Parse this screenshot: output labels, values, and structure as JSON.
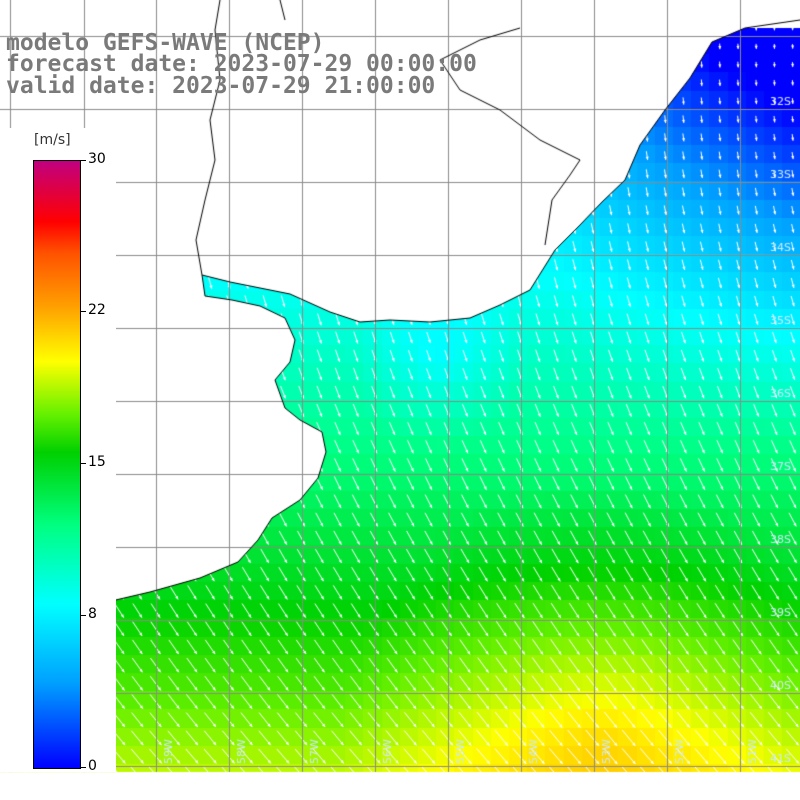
{
  "title": {
    "line1": "modelo GEFS-WAVE (NCEP)",
    "line2": "forecast date: 2023-07-29 00:00:00",
    "line3": "valid date: 2023-07-29 21:00:00"
  },
  "colorbar": {
    "unit": "[m/s]",
    "min": 0,
    "max": 30,
    "ticks": [
      "30",
      "22",
      "15",
      "8",
      "0"
    ],
    "colors": [
      "#0000ff",
      "#00a0ff",
      "#00ffff",
      "#00ff80",
      "#00d000",
      "#ffff00",
      "#ffa000",
      "#ff0000",
      "#c00080"
    ]
  },
  "map": {
    "lat_labels": [
      "32S",
      "33S",
      "34S",
      "35S",
      "36S",
      "37S",
      "38S",
      "39S",
      "40S",
      "41S"
    ],
    "lon_labels": [
      "61W",
      "60W",
      "59W",
      "58W",
      "57W",
      "56W",
      "55W",
      "54W",
      "53W",
      "52W",
      "51W"
    ],
    "field_description_colors": {
      "land": "#ffffff",
      "grid": "#808080",
      "coast": "#000000",
      "arrow": "#ffffff"
    }
  }
}
